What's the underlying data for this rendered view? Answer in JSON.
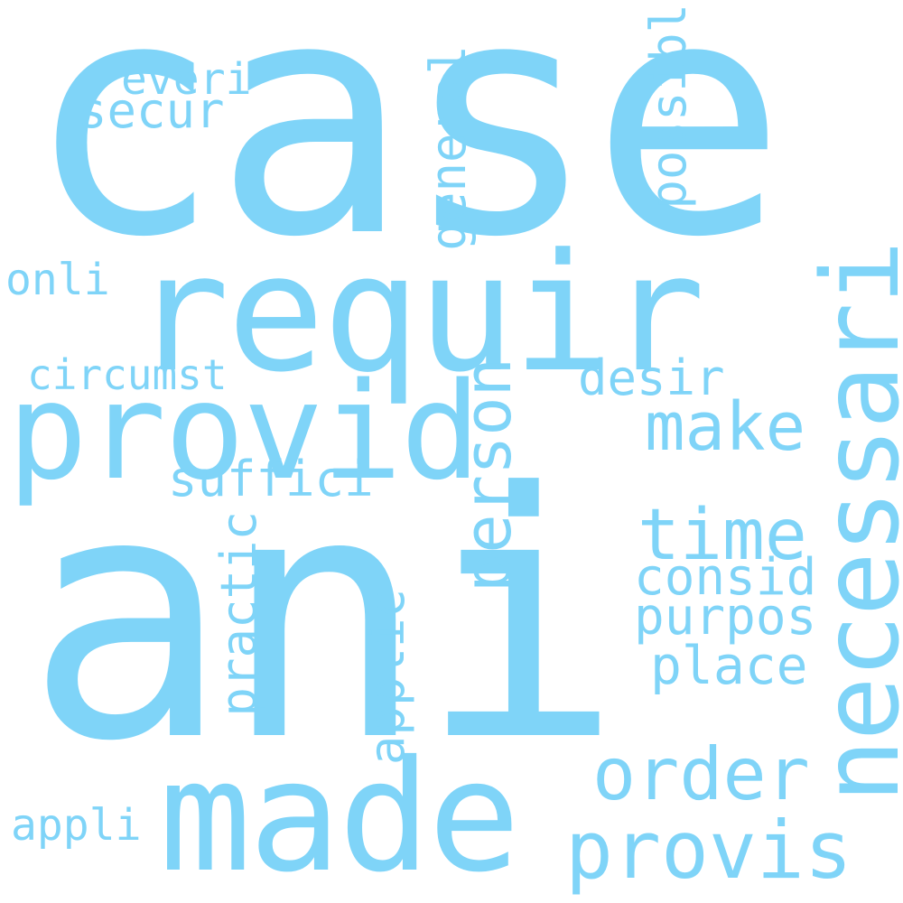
{
  "colors": {
    "background": "#ffffff",
    "word": "#7fd4f8"
  },
  "words": {
    "case": "case",
    "ani": "ani",
    "requir": "requir",
    "provid": "provid",
    "made": "made",
    "necessari": "necessari",
    "person": "person",
    "order": "order",
    "provis": "provis",
    "time": "time",
    "consid": "consid",
    "purpos": "purpos",
    "place": "place",
    "make": "make",
    "desir": "desir",
    "suffici": "suffici",
    "circumst": "circumst",
    "practic": "practic",
    "applic": "applic",
    "appli": "appli",
    "onli": "onli",
    "secur": "secur",
    "everi": "everi",
    "general": "general",
    "possibl": "possibl"
  }
}
